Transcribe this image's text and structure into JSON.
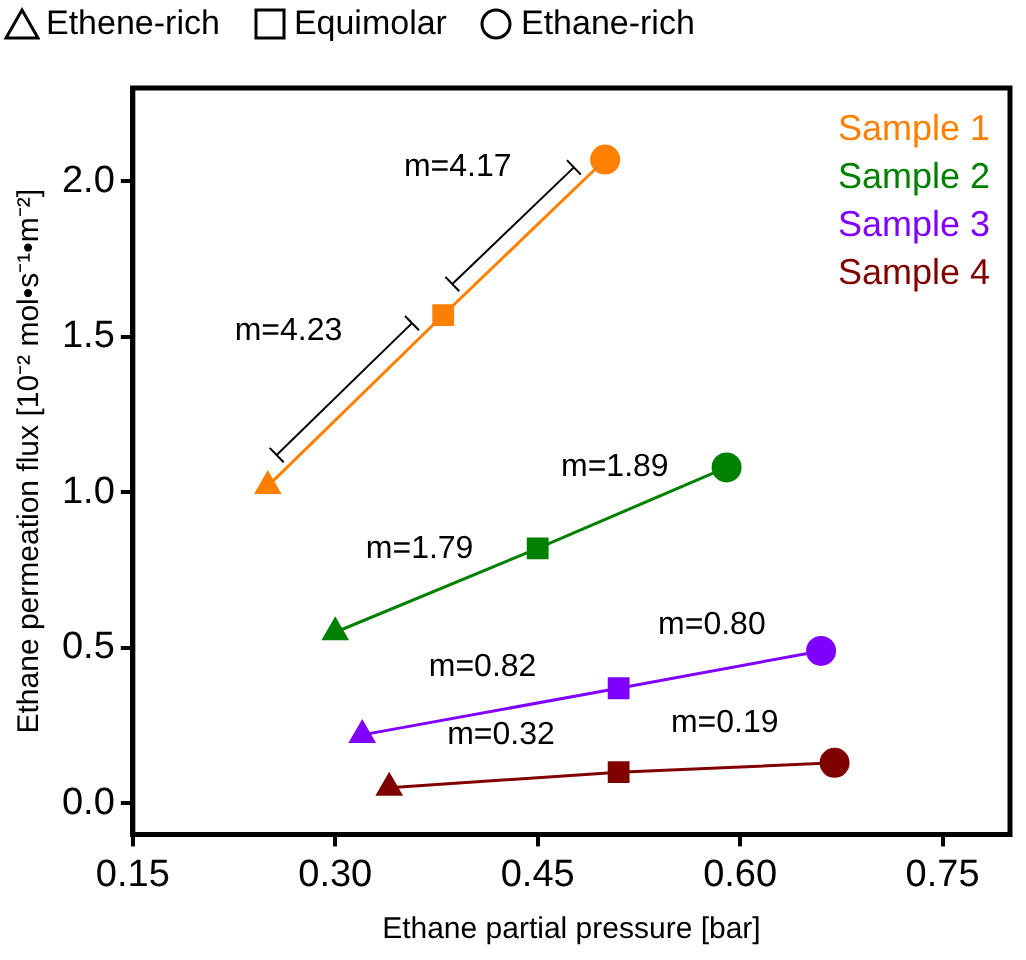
{
  "chart_data": {
    "type": "scatter",
    "xlabel": "Ethane partial pressure [bar]",
    "ylabel": "Ethane permeation flux [10⁻² mol•s⁻¹•m⁻²]",
    "xlim": [
      0.15,
      0.8
    ],
    "xticks": [
      0.15,
      {
        "value": 0.3,
        "label": "0.30"
      },
      0.45,
      {
        "value": 0.6,
        "label": "0.60"
      },
      0.75
    ],
    "ylim": [
      -0.1,
      2.3
    ],
    "yticks": [
      {
        "value": 0,
        "label": "0.0"
      },
      0.5,
      {
        "value": 1,
        "label": "1.0"
      },
      1.5,
      {
        "value": 2,
        "label": "2.0"
      }
    ],
    "grid": false,
    "legend": "top right",
    "series": [
      {
        "name": "Sample 1",
        "type": "line",
        "color": "#ff8000",
        "x": [
          0.25,
          0.38,
          0.5
        ],
        "values": [
          1.02,
          1.57,
          2.07
        ]
      },
      {
        "name": "Sample 2",
        "type": "line",
        "color": "#008000",
        "x": [
          0.3,
          0.45,
          0.59
        ],
        "values": [
          0.55,
          0.82,
          1.08
        ]
      },
      {
        "name": "Sample 3",
        "type": "line",
        "color": "#8000ff",
        "x": [
          0.32,
          0.51,
          0.66
        ],
        "values": [
          0.22,
          0.37,
          0.49
        ]
      },
      {
        "name": "Sample 4",
        "type": "line",
        "color": "#800000",
        "x": [
          0.34,
          0.51,
          0.67
        ],
        "values": [
          0.05,
          0.1,
          0.13
        ]
      },
      {
        "type": "scatter",
        "marker": "triangle",
        "x": [
          0.25,
          0.3,
          0.32,
          0.34
        ],
        "values": [
          1.02,
          0.55,
          0.22,
          0.05
        ],
        "colors": [
          "#ff8000",
          "#008000",
          "#8000ff",
          "#800000"
        ]
      },
      {
        "type": "scatter",
        "marker": "square",
        "x": [
          0.38,
          0.45,
          0.51,
          0.51
        ],
        "values": [
          1.57,
          0.82,
          0.37,
          0.1
        ],
        "colors": [
          "#ff8000",
          "#008000",
          "#8000ff",
          "#800000"
        ]
      },
      {
        "type": "scatter",
        "marker": "circle",
        "x": [
          0.5,
          0.59,
          0.66,
          0.67
        ],
        "values": [
          2.07,
          1.08,
          0.49,
          0.13
        ],
        "colors": [
          "#ff8000",
          "#008000",
          "#8000ff",
          "#800000"
        ]
      }
    ],
    "annotations": [
      "Ethene-rich",
      "Equimolar",
      "Ethane-rich",
      "m=4.23",
      "m=4.17",
      "m=1.79",
      "m=1.89",
      "m=0.82",
      "m=0.80",
      "m=0.32",
      "m=0.19"
    ]
  }
}
